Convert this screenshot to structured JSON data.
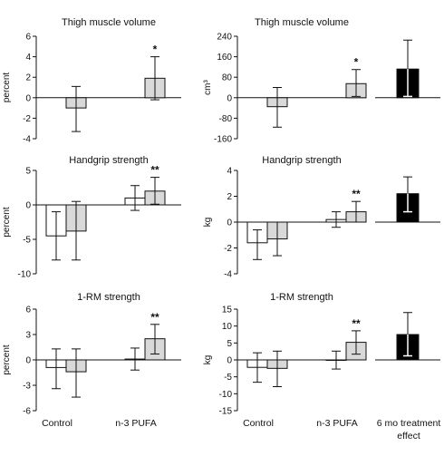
{
  "colors": {
    "open": "#ffffff",
    "light_gray": "#d9d9d9",
    "black": "#000000",
    "stroke": "#111111"
  },
  "group_labels": {
    "control": "Control",
    "pufa": "n-3 PUFA",
    "effect": "6 mo treatment effect",
    "effect_line1": "6 mo treatment",
    "effect_line2": "effect"
  },
  "chart_data": [
    {
      "type": "bar",
      "title": "Thigh muscle volume",
      "ylabel": "percent",
      "ylim": [
        -4,
        6
      ],
      "yticks": [
        -4,
        -2,
        0,
        2,
        4,
        6
      ],
      "categories": [
        "Control",
        "n-3 PUFA"
      ],
      "series": [
        {
          "fill": "open",
          "values": [
            null,
            null
          ],
          "err_low": [
            null,
            null
          ],
          "err_high": [
            null,
            null
          ]
        },
        {
          "fill": "light_gray",
          "values": [
            -1.0,
            1.9
          ],
          "err_low": [
            -3.3,
            -0.2
          ],
          "err_high": [
            1.1,
            4.0
          ]
        }
      ],
      "significance": [
        {
          "category": 1,
          "series": 1,
          "text": "*"
        }
      ],
      "treatment_effect": null
    },
    {
      "type": "bar",
      "title": "Thigh muscle volume",
      "ylabel": "cm³",
      "ylim": [
        -160,
        240
      ],
      "yticks": [
        -160,
        -80,
        0,
        80,
        160,
        240
      ],
      "categories": [
        "Control",
        "n-3 PUFA"
      ],
      "series": [
        {
          "fill": "open",
          "values": [
            null,
            null
          ],
          "err_low": [
            null,
            null
          ],
          "err_high": [
            null,
            null
          ]
        },
        {
          "fill": "light_gray",
          "values": [
            -35,
            55
          ],
          "err_low": [
            -115,
            5
          ],
          "err_high": [
            40,
            110
          ]
        }
      ],
      "significance": [
        {
          "category": 1,
          "series": 1,
          "text": "*"
        }
      ],
      "treatment_effect": {
        "value": 112,
        "err_low": 5,
        "err_high": 225
      }
    },
    {
      "type": "bar",
      "title": "Handgrip strength",
      "ylabel": "percent",
      "ylim": [
        -10,
        5
      ],
      "yticks": [
        -10,
        -5,
        0,
        5
      ],
      "categories": [
        "Control",
        "n-3 PUFA"
      ],
      "series": [
        {
          "fill": "open",
          "values": [
            -4.5,
            1.0
          ],
          "err_low": [
            -8.0,
            -0.8
          ],
          "err_high": [
            -1.0,
            2.8
          ]
        },
        {
          "fill": "light_gray",
          "values": [
            -3.8,
            2.0
          ],
          "err_low": [
            -8.0,
            0.1
          ],
          "err_high": [
            0.5,
            4.0
          ]
        }
      ],
      "significance": [
        {
          "category": 1,
          "series": 1,
          "text": "**"
        }
      ],
      "treatment_effect": null
    },
    {
      "type": "bar",
      "title": "Handgrip strength",
      "ylabel": "kg",
      "ylim": [
        -4,
        4
      ],
      "yticks": [
        -4,
        -2,
        0,
        2,
        4
      ],
      "categories": [
        "Control",
        "n-3 PUFA"
      ],
      "series": [
        {
          "fill": "open",
          "values": [
            -1.6,
            0.2
          ],
          "err_low": [
            -2.9,
            -0.4
          ],
          "err_high": [
            -0.6,
            0.8
          ]
        },
        {
          "fill": "light_gray",
          "values": [
            -1.3,
            0.8
          ],
          "err_low": [
            -2.6,
            0.0
          ],
          "err_high": [
            0.0,
            1.6
          ]
        }
      ],
      "significance": [
        {
          "category": 1,
          "series": 1,
          "text": "**"
        }
      ],
      "treatment_effect": {
        "value": 2.2,
        "err_low": 0.8,
        "err_high": 3.5
      }
    },
    {
      "type": "bar",
      "title": "1-RM strength",
      "ylabel": "percent",
      "ylim": [
        -6,
        6
      ],
      "yticks": [
        -6,
        -3,
        0,
        3,
        6
      ],
      "categories": [
        "Control",
        "n-3 PUFA"
      ],
      "series": [
        {
          "fill": "open",
          "values": [
            -0.9,
            0.1
          ],
          "err_low": [
            -3.4,
            -1.2
          ],
          "err_high": [
            1.3,
            1.4
          ]
        },
        {
          "fill": "light_gray",
          "values": [
            -1.4,
            2.5
          ],
          "err_low": [
            -4.4,
            0.7
          ],
          "err_high": [
            1.3,
            4.2
          ]
        }
      ],
      "significance": [
        {
          "category": 1,
          "series": 1,
          "text": "**"
        }
      ],
      "treatment_effect": null
    },
    {
      "type": "bar",
      "title": "1-RM strength",
      "ylabel": "kg",
      "ylim": [
        -15,
        15
      ],
      "yticks": [
        -15,
        -10,
        -5,
        0,
        5,
        10,
        15
      ],
      "categories": [
        "Control",
        "n-3 PUFA"
      ],
      "series": [
        {
          "fill": "open",
          "values": [
            -2.2,
            0.0
          ],
          "err_low": [
            -6.6,
            -2.7
          ],
          "err_high": [
            2.1,
            2.6
          ]
        },
        {
          "fill": "light_gray",
          "values": [
            -2.5,
            5.2
          ],
          "err_low": [
            -7.9,
            1.7
          ],
          "err_high": [
            2.6,
            8.6
          ]
        }
      ],
      "significance": [
        {
          "category": 1,
          "series": 1,
          "text": "**"
        }
      ],
      "treatment_effect": {
        "value": 7.5,
        "err_low": 1.2,
        "err_high": 14.0
      }
    }
  ]
}
